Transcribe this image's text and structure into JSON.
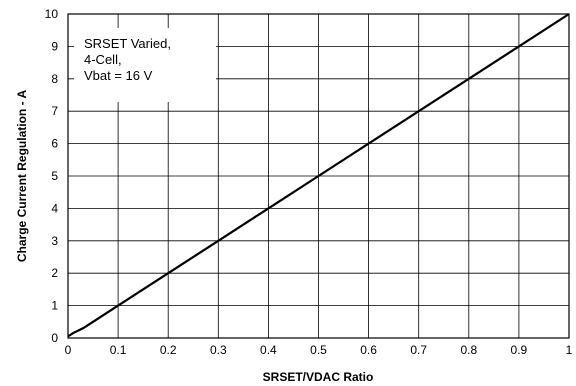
{
  "chart_data": {
    "type": "line",
    "title": "",
    "xlabel": "SRSET/VDAC Ratio",
    "ylabel": "Charge Current Regulation - A",
    "xlim": [
      0,
      1
    ],
    "ylim": [
      0,
      10
    ],
    "x_ticks": [
      "0",
      "0.1",
      "0.2",
      "0.3",
      "0.4",
      "0.5",
      "0.6",
      "0.7",
      "0.8",
      "0.9",
      "1"
    ],
    "y_ticks": [
      "0",
      "1",
      "2",
      "3",
      "4",
      "5",
      "6",
      "7",
      "8",
      "9",
      "10"
    ],
    "grid": true,
    "annotation": [
      "SRSET Varied,",
      "4-Cell,",
      "Vbat = 16 V"
    ],
    "series": [
      {
        "x": [
          0,
          0.01,
          0.03,
          0.05,
          0.1,
          0.2,
          0.3,
          0.4,
          0.5,
          0.6,
          0.7,
          0.8,
          0.9,
          1.0
        ],
        "y": [
          0.05,
          0.15,
          0.3,
          0.5,
          1.0,
          2.0,
          3.0,
          4.0,
          5.0,
          6.0,
          7.0,
          8.0,
          9.0,
          10.0
        ]
      }
    ]
  }
}
